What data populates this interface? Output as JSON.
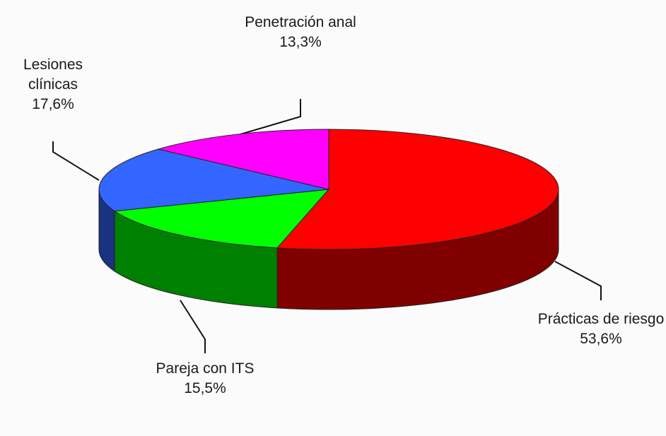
{
  "chart_data": {
    "type": "pie",
    "categories": [
      "Prácticas de riesgo",
      "Pareja con ITS",
      "Lesiones clínicas",
      "Penetración anal"
    ],
    "values": [
      53.6,
      15.5,
      17.6,
      13.3
    ],
    "value_labels": [
      "53,6%",
      "15,5%",
      "17,6%",
      "13,3%"
    ],
    "colors": [
      "#ff0000",
      "#00ff00",
      "#3366ff",
      "#ff00ff"
    ],
    "three_d": true
  }
}
